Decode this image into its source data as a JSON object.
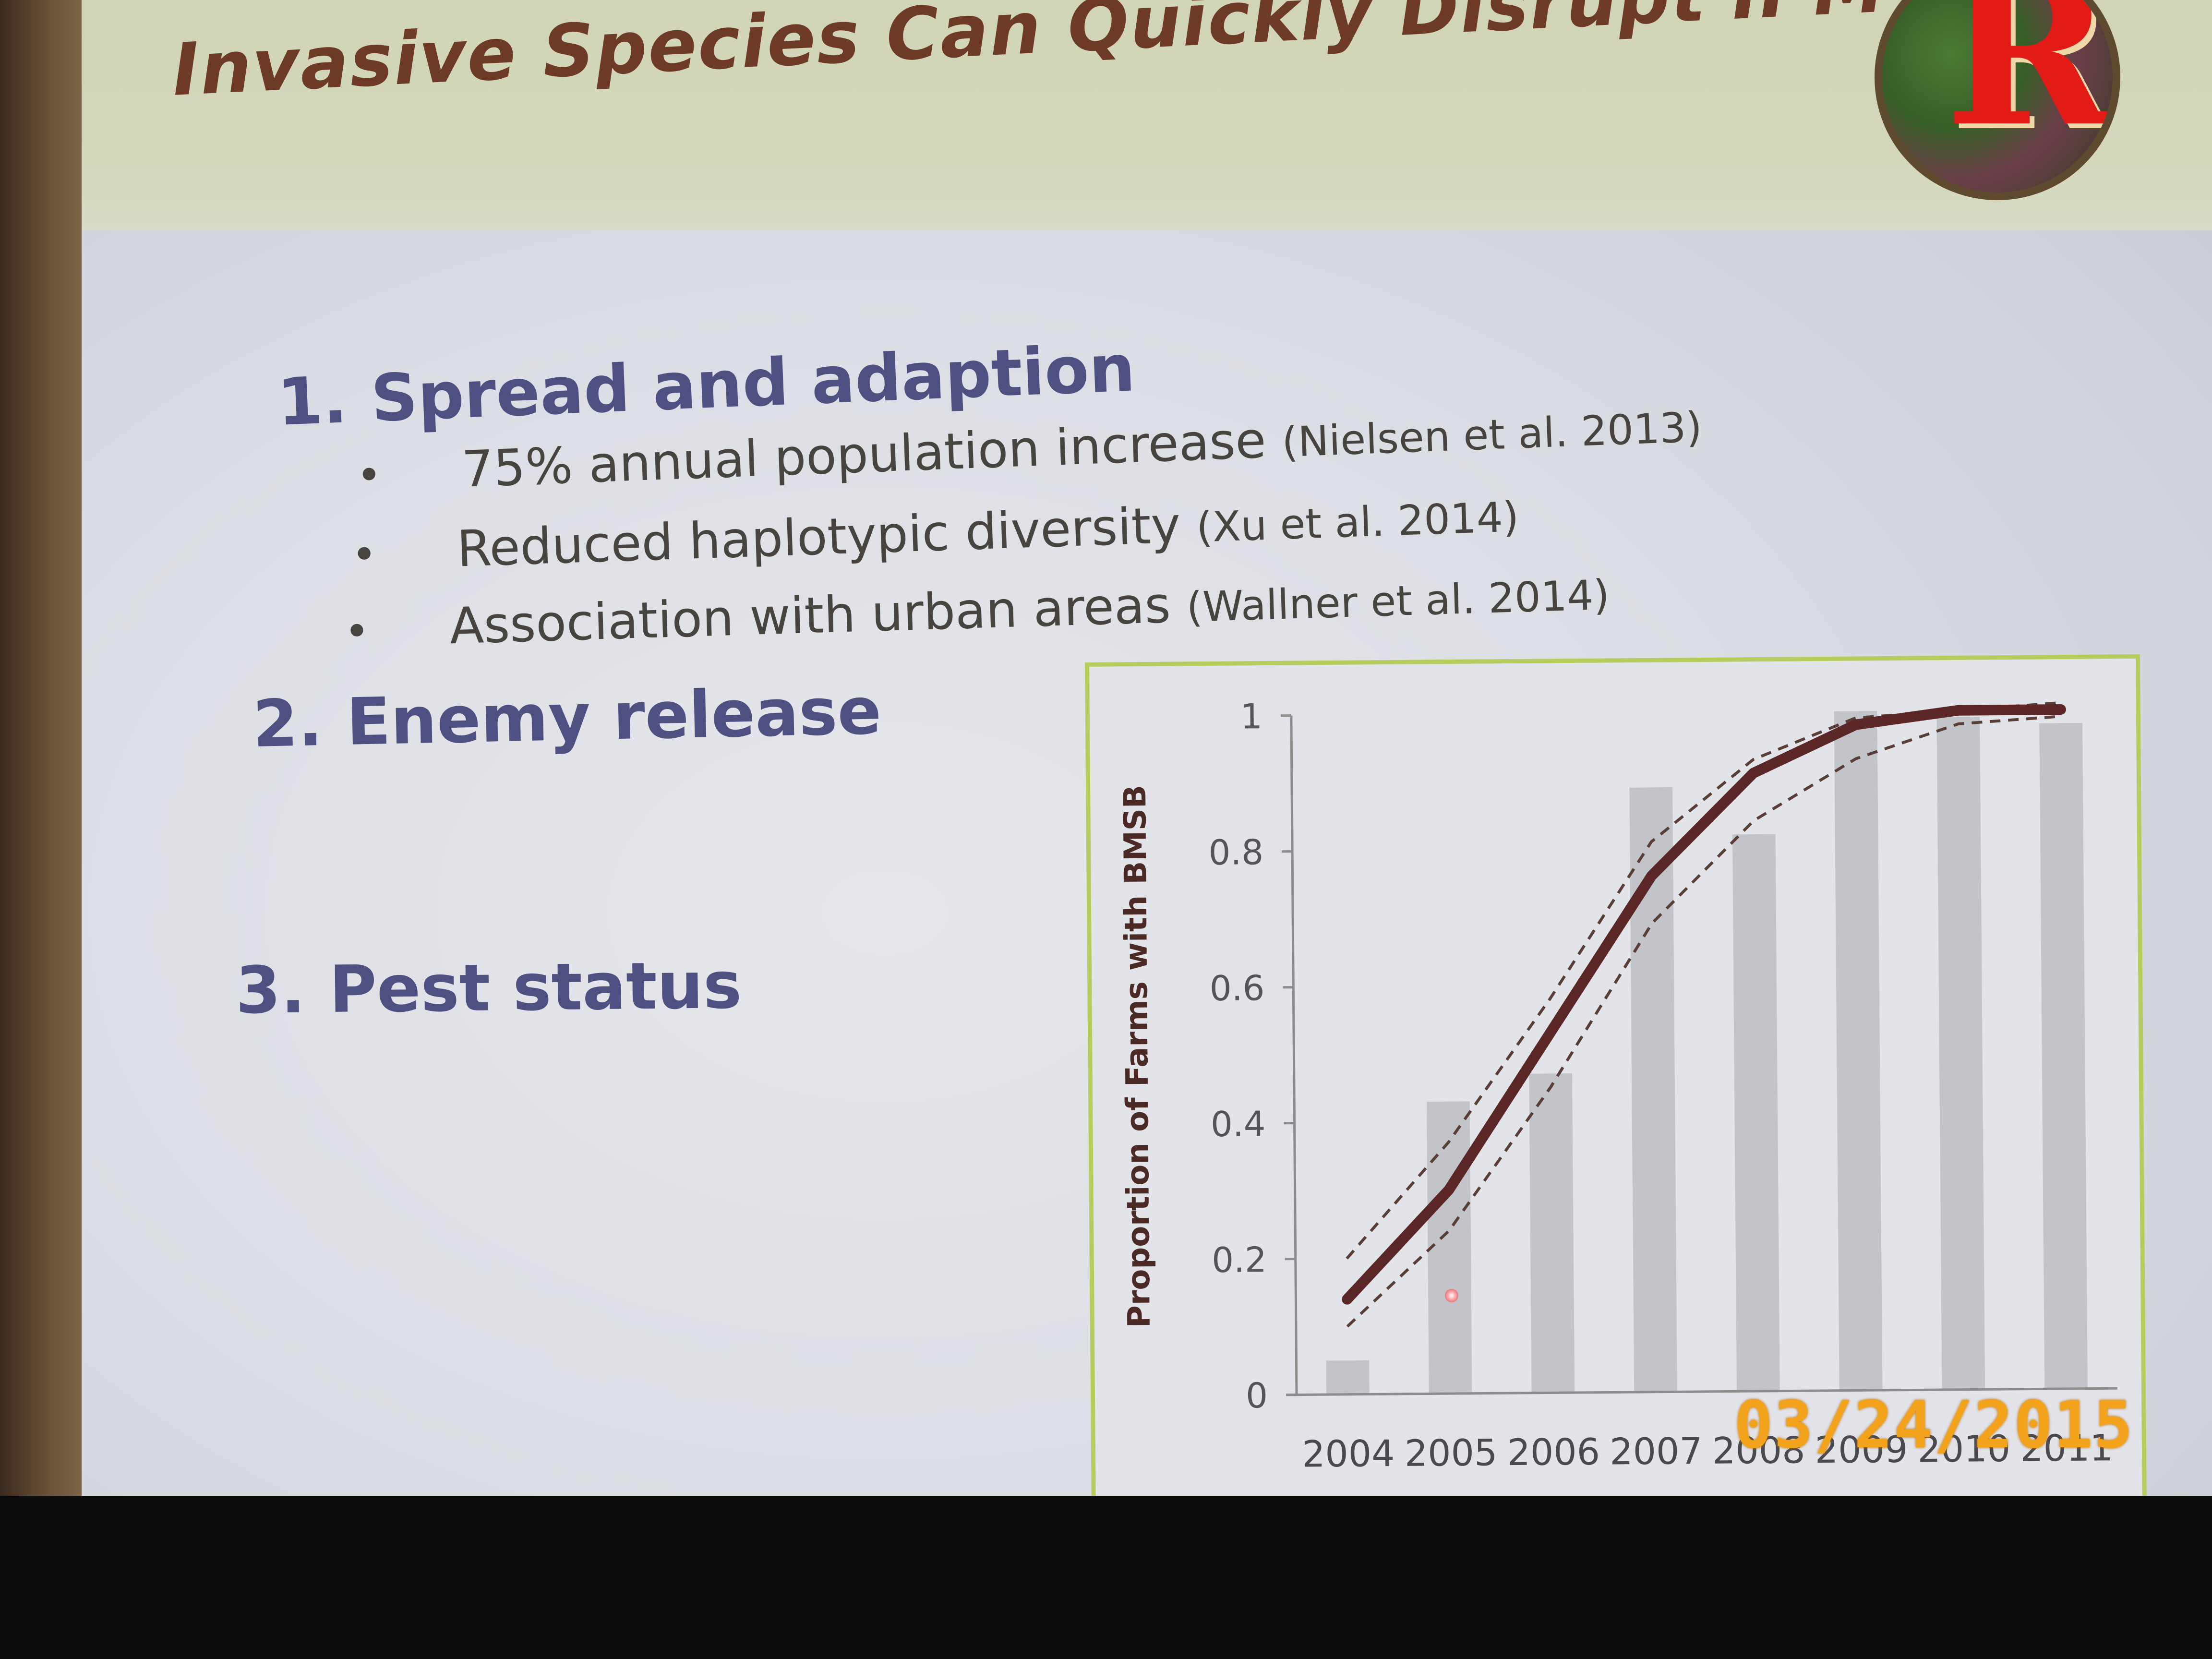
{
  "slide": {
    "title": "Invasive Species Can Quickly Disrupt IPM",
    "logo_letter": "R",
    "sections": [
      {
        "number": "1.",
        "heading": "Spread and adaption",
        "bullets": [
          {
            "text": "75% annual population increase",
            "citation": "(Nielsen et al. 2013)"
          },
          {
            "text": "Reduced haplotypic diversity",
            "citation": "(Xu et al. 2014)"
          },
          {
            "text": "Association with urban areas",
            "citation": "(Wallner et al. 2014)"
          }
        ]
      },
      {
        "number": "2.",
        "heading": "Enemy release"
      },
      {
        "number": "3.",
        "heading": "Pest status"
      }
    ]
  },
  "camera_date_stamp": "03/24/2015",
  "colors": {
    "title": "#6e3a28",
    "headings": "#4f5082",
    "chart_border": "#b6cc5c",
    "bars": "#c3c4c9",
    "line": "#5a2726",
    "date_stamp": "#f3a21c"
  },
  "chart_data": {
    "type": "bar",
    "categories": [
      "2004",
      "2005",
      "2006",
      "2007",
      "2008",
      "2009",
      "2010",
      "2011"
    ],
    "ylabel": "Proportion of Farms with BMSB",
    "xlabel": "",
    "ylim": [
      0,
      1
    ],
    "yticks": [
      "0",
      "0.2",
      "0.4",
      "0.6",
      "0.8",
      "1"
    ],
    "values": [
      0.05,
      0.43,
      0.47,
      0.89,
      0.82,
      1.0,
      0.99,
      0.98
    ],
    "fit_line": [
      0.14,
      0.3,
      0.53,
      0.76,
      0.91,
      0.98,
      1.0,
      1.0
    ],
    "upper_bound": [
      0.2,
      0.37,
      0.58,
      0.81,
      0.93,
      0.99,
      1.0,
      1.01
    ],
    "lower_bound": [
      0.1,
      0.24,
      0.45,
      0.69,
      0.84,
      0.93,
      0.98,
      0.99
    ],
    "grid": false
  }
}
